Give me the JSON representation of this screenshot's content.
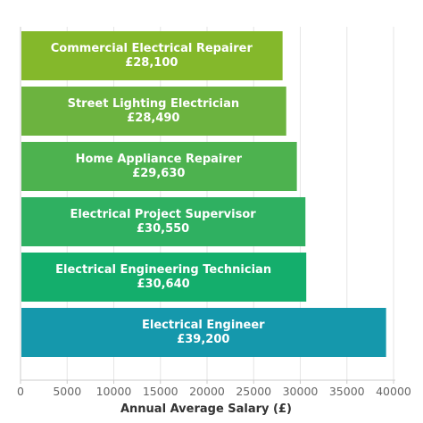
{
  "chart_data": {
    "type": "bar",
    "orientation": "horizontal",
    "categories": [
      "Commercial Electrical Repairer",
      "Street Lighting Electrician",
      "Home Appliance Repairer",
      "Electrical Project Supervisor",
      "Electrical Engineering Technician",
      "Electrical Engineer"
    ],
    "values": [
      28100,
      28490,
      29630,
      30550,
      30640,
      39200
    ],
    "value_labels": [
      "£28,100",
      "£28,490",
      "£29,630",
      "£30,550",
      "£30,640",
      "£39,200"
    ],
    "colors": [
      "#84b82b",
      "#6cb33f",
      "#4db24f",
      "#2fb061",
      "#14ae6c",
      "#1598ac"
    ],
    "xlabel": "Annual Average Salary (£)",
    "ylabel": "",
    "xlim": [
      0,
      40000
    ],
    "x_ticks": [
      0,
      5000,
      10000,
      15000,
      20000,
      25000,
      30000,
      35000,
      40000
    ],
    "x_tick_labels": [
      "0",
      "5000",
      "10000",
      "15000",
      "20000",
      "25000",
      "30000",
      "35000",
      "40000"
    ],
    "grid": "vertical",
    "gridline_color": "#e6e6e6",
    "axis_color": "#cccccc"
  }
}
